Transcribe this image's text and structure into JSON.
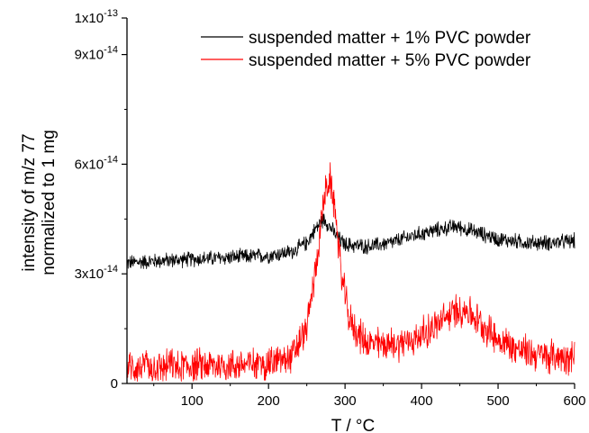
{
  "chart_data": {
    "type": "line",
    "xlabel": "T / °C",
    "ylabel_line1": "intensity of m/z 77",
    "ylabel_line2": "normalized to 1 mg",
    "xlim": [
      15,
      600
    ],
    "ylim": [
      0,
      1e-13
    ],
    "x_ticks": [
      100,
      200,
      300,
      400,
      500,
      600
    ],
    "x_tick_labels": [
      "100",
      "200",
      "300",
      "400",
      "500",
      "600"
    ],
    "y_ticks": [
      0,
      3e-14,
      6e-14,
      9e-14,
      1e-13
    ],
    "y_tick_labels": [
      {
        "mantissa": "0",
        "exponent": ""
      },
      {
        "mantissa": "3x10",
        "exponent": "-14"
      },
      {
        "mantissa": "6x10",
        "exponent": "-14"
      },
      {
        "mantissa": "9x10",
        "exponent": "-14"
      },
      {
        "mantissa": "1x10",
        "exponent": "-13"
      }
    ],
    "legend_position": "top-right",
    "grid": false,
    "series": [
      {
        "name": "suspended matter + 1% PVC powder",
        "color": "#000000",
        "x": [
          15,
          50,
          100,
          150,
          200,
          230,
          250,
          262,
          272,
          280,
          290,
          300,
          330,
          360,
          390,
          420,
          445,
          470,
          500,
          540,
          570,
          600
        ],
        "y": [
          3.3e-14,
          3.35e-14,
          3.4e-14,
          3.45e-14,
          3.5e-14,
          3.6e-14,
          3.85e-14,
          4.25e-14,
          4.5e-14,
          4.3e-14,
          4e-14,
          3.8e-14,
          3.75e-14,
          3.85e-14,
          4.05e-14,
          4.2e-14,
          4.3e-14,
          4.15e-14,
          3.95e-14,
          3.85e-14,
          3.85e-14,
          3.9e-14
        ],
        "noise": 2.5e-15
      },
      {
        "name": "suspended matter + 5% PVC powder",
        "color": "#ff0000",
        "x": [
          15,
          50,
          100,
          150,
          200,
          230,
          250,
          262,
          272,
          280,
          288,
          295,
          305,
          315,
          330,
          360,
          390,
          420,
          445,
          460,
          480,
          500,
          530,
          560,
          600
        ],
        "y": [
          4.5e-15,
          4.5e-15,
          5e-15,
          5e-15,
          5.5e-15,
          7e-15,
          1.5e-14,
          3.2e-14,
          5e-14,
          5.6e-14,
          4.6e-14,
          3e-14,
          1.8e-14,
          1.4e-14,
          1.1e-14,
          1.05e-14,
          1.2e-14,
          1.6e-14,
          2e-14,
          2e-14,
          1.6e-14,
          1.2e-14,
          9e-15,
          7.5e-15,
          7.5e-15
        ],
        "noise": 5.5e-15
      }
    ]
  }
}
